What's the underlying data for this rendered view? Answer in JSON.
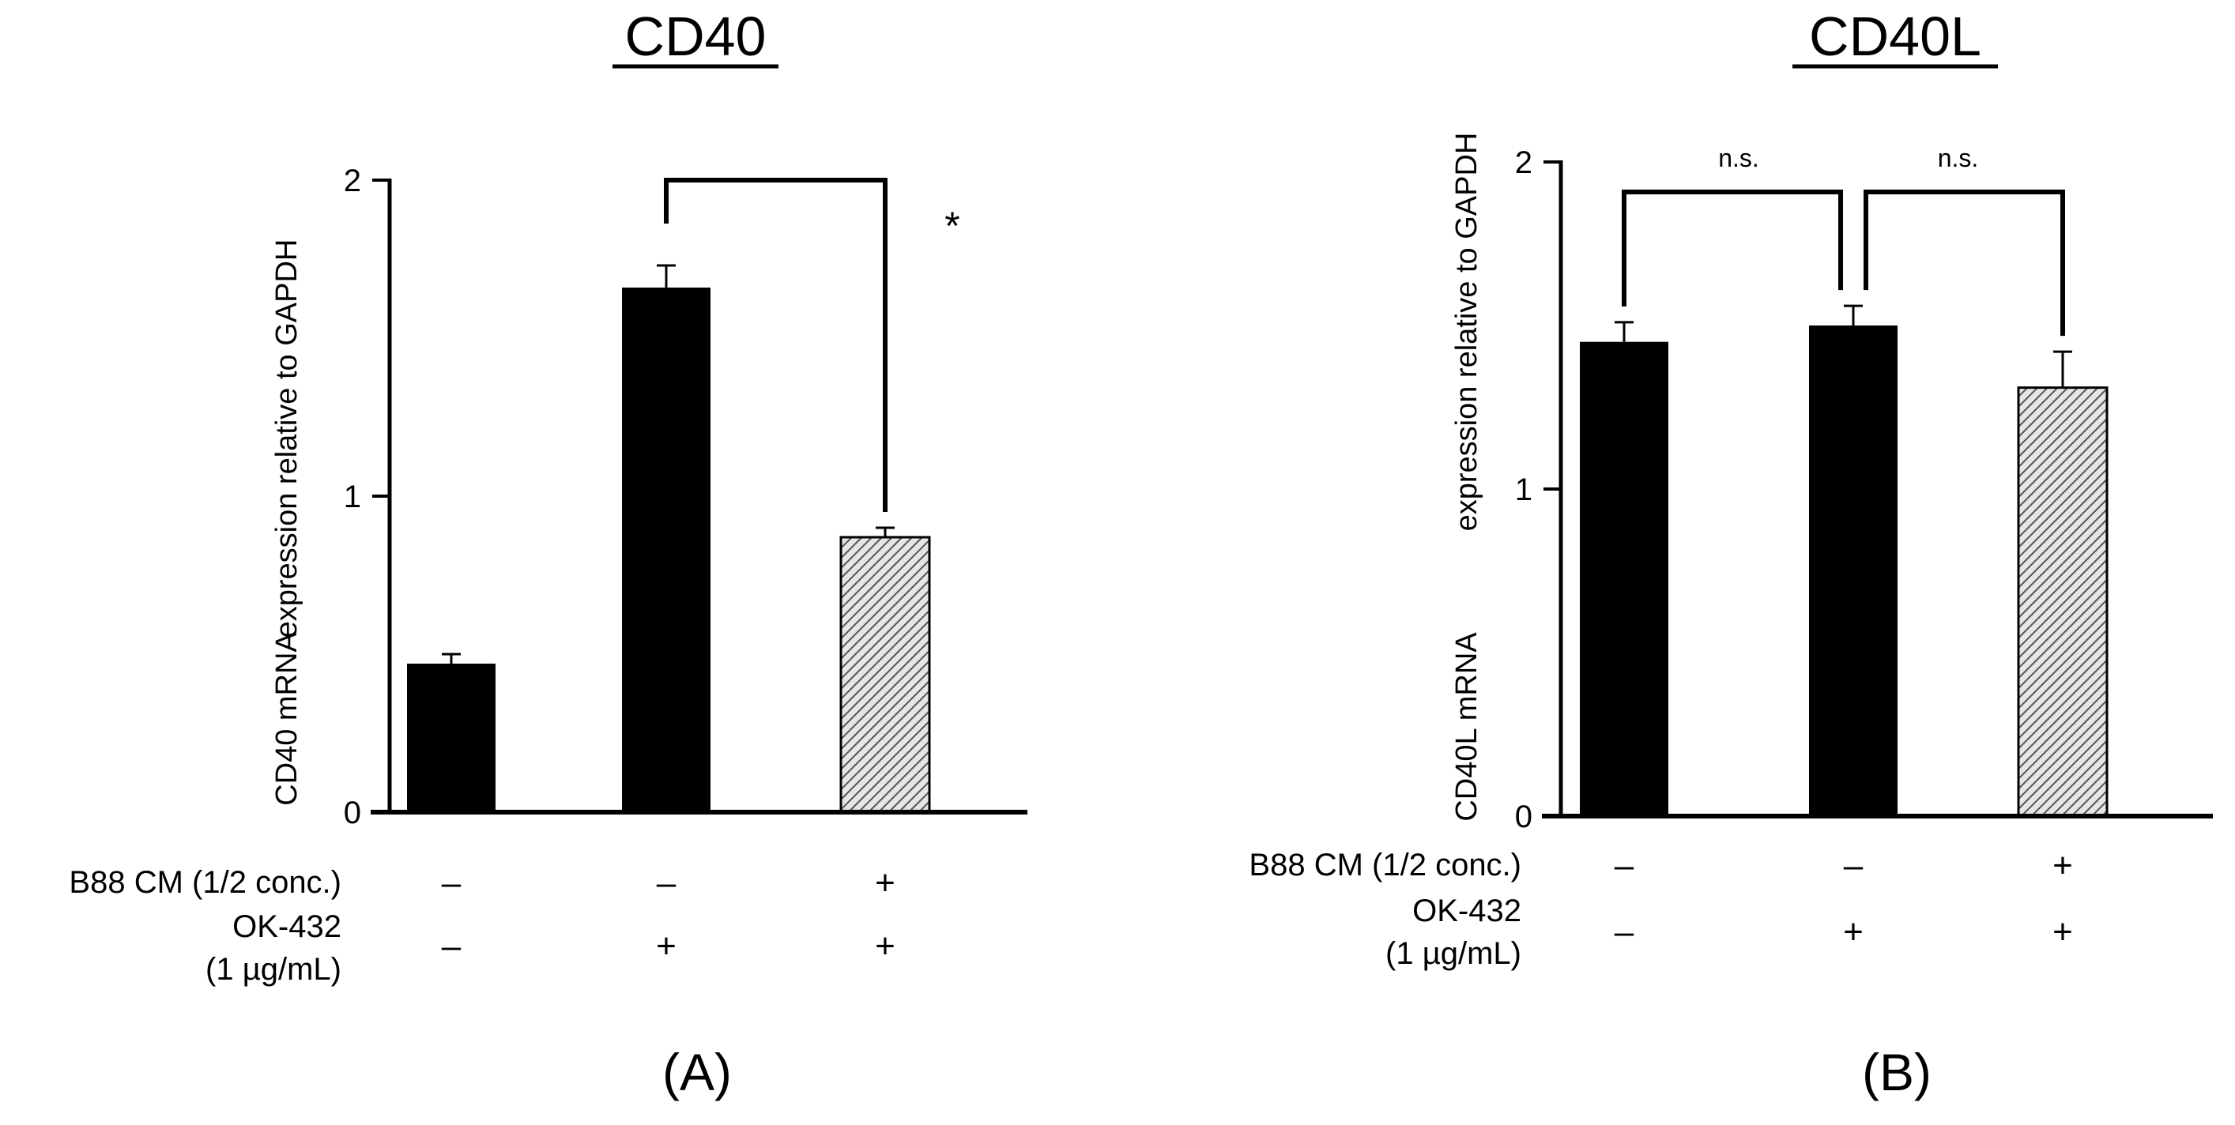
{
  "chart_data": [
    {
      "type": "bar",
      "panel": "(A)",
      "title": "CD40",
      "ylabel_gene": "CD40 mRNA",
      "ylabel_rest": "expression relative to GAPDH",
      "yticks": [
        "0",
        "1",
        "2"
      ],
      "ylim": [
        0,
        2
      ],
      "rows": [
        {
          "label": [
            "B88 CM (1/2 conc.)"
          ],
          "values": [
            "–",
            "–",
            "+"
          ]
        },
        {
          "label": [
            "OK-432",
            "(1 µg/mL)"
          ],
          "values": [
            "–",
            "+",
            "+"
          ]
        }
      ],
      "bars": [
        {
          "value": 0.47,
          "error": 0.03,
          "fill": "solid"
        },
        {
          "value": 1.66,
          "error": 0.07,
          "fill": "solid"
        },
        {
          "value": 0.87,
          "error": 0.03,
          "fill": "hatched"
        }
      ],
      "significance": [
        {
          "from": 1,
          "to": 2,
          "label": "*"
        }
      ]
    },
    {
      "type": "bar",
      "panel": "(B)",
      "title": "CD40L",
      "ylabel_gene": "CD40L mRNA",
      "ylabel_rest": "expression relative to GAPDH",
      "yticks": [
        "0",
        "1",
        "2"
      ],
      "ylim": [
        0,
        2
      ],
      "rows": [
        {
          "label": [
            "B88 CM (1/2 conc.)"
          ],
          "values": [
            "–",
            "–",
            "+"
          ]
        },
        {
          "label": [
            "OK-432",
            "(1 µg/mL)"
          ],
          "values": [
            "–",
            "+",
            "+"
          ]
        }
      ],
      "bars": [
        {
          "value": 1.45,
          "error": 0.06,
          "fill": "solid"
        },
        {
          "value": 1.5,
          "error": 0.06,
          "fill": "solid"
        },
        {
          "value": 1.31,
          "error": 0.11,
          "fill": "hatched"
        }
      ],
      "significance": [
        {
          "from": 0,
          "to": 1,
          "label": "n.s."
        },
        {
          "from": 1,
          "to": 2,
          "label": "n.s."
        }
      ]
    }
  ],
  "colors": {
    "bar": "#000000",
    "hatch": "#555555",
    "hatch_bg": "#e6e6e6"
  }
}
